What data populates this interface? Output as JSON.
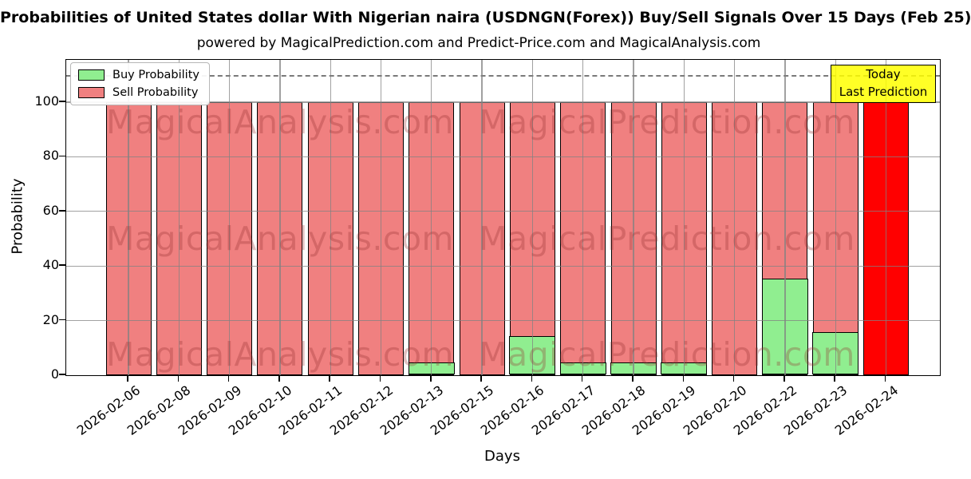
{
  "title": "Probabilities of United States dollar With Nigerian naira (USDNGN(Forex)) Buy/Sell Signals Over 15 Days (Feb 25)",
  "subtitle": "powered by MagicalPrediction.com and Predict-Price.com and MagicalAnalysis.com",
  "xlabel": "Days",
  "ylabel": "Probability",
  "legend": {
    "items": [
      {
        "label": "Buy Probability",
        "color": "#90EE90"
      },
      {
        "label": "Sell Probability",
        "color": "#F08080"
      }
    ]
  },
  "annotation": {
    "line1": "Today",
    "line2": "Last Prediction",
    "bg_color": "#FFFF00",
    "border_color": "#000000"
  },
  "watermark": {
    "left_text": "MagicalAnalysis.com",
    "right_text": "MagicalPrediction.com"
  },
  "chart_data": {
    "type": "bar",
    "stacked": true,
    "title": "Probabilities of United States dollar With Nigerian naira (USDNGN(Forex)) Buy/Sell Signals Over 15 Days (Feb 25)",
    "xlabel": "Days",
    "ylabel": "Probability",
    "categories": [
      "2026-02-06",
      "2026-02-08",
      "2026-02-09",
      "2026-02-10",
      "2026-02-11",
      "2026-02-12",
      "2026-02-13",
      "2026-02-15",
      "2026-02-16",
      "2026-02-17",
      "2026-02-18",
      "2026-02-19",
      "2026-02-20",
      "2026-02-22",
      "2026-02-23",
      "2026-02-24"
    ],
    "series": [
      {
        "name": "Buy Probability",
        "color": "#90EE90",
        "values": [
          0,
          0,
          0,
          0,
          0,
          0,
          4.5,
          0,
          14,
          4.5,
          4.5,
          4.5,
          0,
          35,
          15.5,
          0
        ]
      },
      {
        "name": "Sell Probability",
        "color": "#F08080",
        "values": [
          100,
          100,
          100,
          100,
          100,
          100,
          95.5,
          100,
          86,
          95.5,
          95.5,
          95.5,
          100,
          65,
          84.5,
          100
        ]
      }
    ],
    "today_bar": {
      "index": 15,
      "color": "#FF0000",
      "label": "Today Last Prediction"
    },
    "yticks": [
      0,
      20,
      40,
      60,
      80,
      100
    ],
    "ylim": [
      0,
      115.5
    ],
    "dashed_line_y": 110,
    "bar_edge_color": "#000000",
    "grid": "on",
    "legend_position": "upper-left"
  }
}
